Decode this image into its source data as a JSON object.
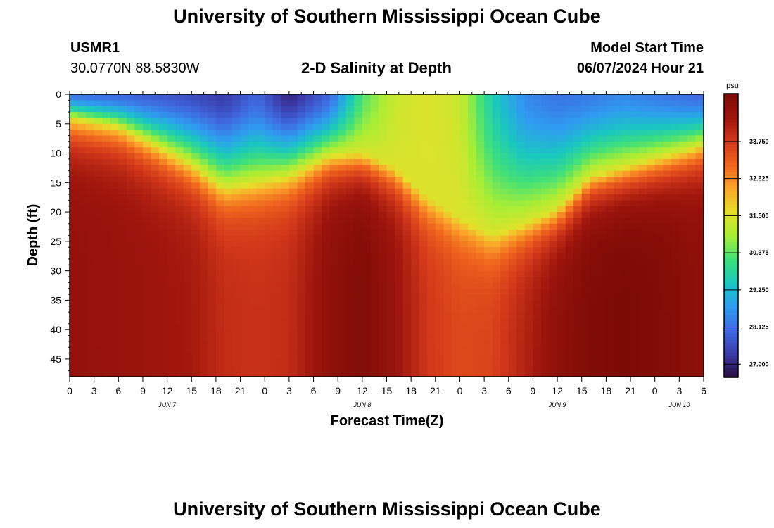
{
  "header": {
    "title": "University of Southern Mississippi Ocean Cube",
    "station_id": "USMR1",
    "coordinates": "30.0770N  88.5830W",
    "subtitle": "2-D Salinity at Depth",
    "model_label": "Model Start Time",
    "model_start": "06/07/2024 Hour 21"
  },
  "footer": {
    "title": "University of Southern Mississippi Ocean Cube"
  },
  "chart_data": {
    "type": "heatmap",
    "title": "2-D Salinity at Depth",
    "xlabel": "Forecast Time(Z)",
    "ylabel": "Depth (ft)",
    "x_range_hours": [
      0,
      78
    ],
    "x_tick_step_hours": 3,
    "x_tick_labels": [
      "0",
      "3",
      "6",
      "9",
      "12",
      "15",
      "18",
      "21",
      "0",
      "3",
      "6",
      "9",
      "12",
      "15",
      "18",
      "21",
      "0",
      "3",
      "6",
      "9",
      "12",
      "15",
      "18",
      "21",
      "0",
      "3",
      "6"
    ],
    "day_labels": [
      {
        "label": "JUN 7",
        "hour": 12
      },
      {
        "label": "JUN 8",
        "hour": 36
      },
      {
        "label": "JUN 9",
        "hour": 60
      },
      {
        "label": "JUN 10",
        "hour": 75
      }
    ],
    "y_range_ft": [
      0,
      48
    ],
    "y_ticks": [
      "0",
      "5",
      "10",
      "15",
      "20",
      "25",
      "30",
      "35",
      "40",
      "45"
    ],
    "colorbar": {
      "unit": "psu",
      "range": [
        26.6,
        35.2
      ],
      "ticks": [
        "27.000",
        "28.125",
        "29.250",
        "30.375",
        "31.500",
        "32.625",
        "33.750"
      ],
      "colors": [
        "#2a0a3c",
        "#3a3aa8",
        "#3f6ae0",
        "#2f9cf0",
        "#19c7c0",
        "#3fe07a",
        "#a8ee35",
        "#e6e02a",
        "#fba62a",
        "#f0651e",
        "#d2381a",
        "#9e150d",
        "#7c0b05"
      ]
    },
    "profile_hours": [
      0,
      6,
      11,
      15,
      19,
      23,
      27,
      32,
      36,
      40,
      44,
      48,
      52,
      56,
      60,
      64,
      68,
      72,
      76,
      78
    ],
    "profile_halocline_ft": [
      4.0,
      5.5,
      9.0,
      12.0,
      16.0,
      15.0,
      14.0,
      10.5,
      10.0,
      12.5,
      17.5,
      21.0,
      24.0,
      22.0,
      19.5,
      14.0,
      12.5,
      11.0,
      9.5,
      8.5
    ],
    "profile_surface_psu": [
      28.2,
      28.0,
      27.8,
      27.6,
      27.3,
      28.0,
      27.0,
      28.0,
      30.3,
      31.3,
      31.5,
      31.3,
      29.6,
      28.5,
      28.2,
      28.3,
      28.5,
      28.3,
      28.1,
      28.0
    ],
    "profile_bottom_psu": [
      34.7,
      34.6,
      34.5,
      34.4,
      34.0,
      33.9,
      34.0,
      34.8,
      35.1,
      34.6,
      33.8,
      33.5,
      33.6,
      34.2,
      34.8,
      35.1,
      35.2,
      35.1,
      34.9,
      34.8
    ]
  }
}
